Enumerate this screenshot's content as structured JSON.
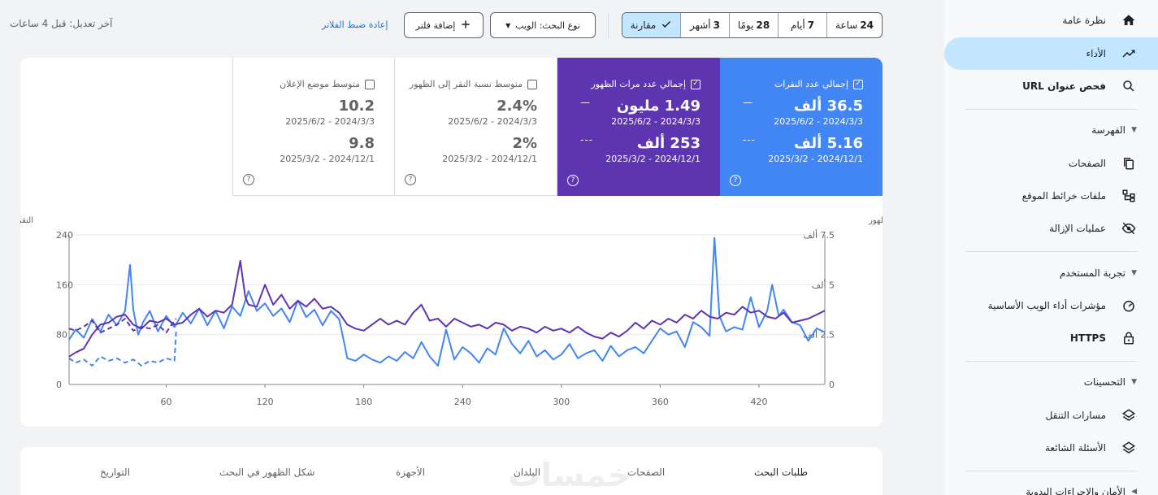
{
  "colors": {
    "accent": "#1a73e8",
    "active_bg": "#c2e7ff",
    "clicks": "#4285f4",
    "impressions": "#5e35b1"
  },
  "sidebar": {
    "items": [
      {
        "label": "نظرة عامة",
        "icon": "home-icon"
      },
      {
        "label": "الأداء",
        "icon": "trending-up-icon"
      },
      {
        "label": "فحص عنوان URL",
        "icon": "search-icon"
      }
    ],
    "indexing": {
      "title": "الفهرسة",
      "items": [
        {
          "label": "الصفحات",
          "icon": "pages-icon"
        },
        {
          "label": "ملفات خرائط الموقع",
          "icon": "sitemap-icon"
        },
        {
          "label": "عمليات الإزالة",
          "icon": "eye-off-icon"
        }
      ]
    },
    "experience": {
      "title": "تجربة المستخدم",
      "items": [
        {
          "label": "مؤشرات أداء الويب الأساسية",
          "icon": "speedometer-icon"
        },
        {
          "label": "HTTPS",
          "icon": "lock-icon"
        }
      ]
    },
    "enhancements": {
      "title": "التحسينات",
      "items": [
        {
          "label": "مسارات التنقل",
          "icon": "layers-icon"
        },
        {
          "label": "الأسئلة الشائعة",
          "icon": "layers-icon"
        }
      ]
    },
    "security": {
      "title": "الأمان والإجراءات اليدوية"
    }
  },
  "topbar": {
    "date_ranges": [
      {
        "num": "24",
        "unit": "ساعة"
      },
      {
        "num": "7",
        "unit": "أيام"
      },
      {
        "num": "28",
        "unit": "يومًا"
      },
      {
        "num": "3",
        "unit": "أشهر"
      }
    ],
    "compare_label": "مقارنة",
    "search_type_label": "نوع البحث: الويب",
    "add_filter_label": "إضافة فلتر",
    "reset_filters_label": "إعادة ضبط الفلاتر",
    "last_updated": "آخر تعديل: قبل 4 ساعات"
  },
  "metrics": {
    "clicks": {
      "label": "إجمالي عدد النقرات",
      "value1": "36.5 ألف",
      "range1": "2024/3/3 - 2025/6/2",
      "value2": "5.16 ألف",
      "range2": "2024/12/1 - 2025/3/2",
      "checked": "✓"
    },
    "impressions": {
      "label": "إجمالي عدد مرات الظهور",
      "value1": "1.49 مليون",
      "range1": "2024/3/3 - 2025/6/2",
      "value2": "253 ألف",
      "range2": "2024/12/1 - 2025/3/2",
      "checked": "✓"
    },
    "ctr": {
      "label": "متوسط نسبة النقر إلى الظهور",
      "value1": "2.4%",
      "range1": "2024/3/3 - 2025/6/2",
      "value2": "2%",
      "range2": "2024/12/1 - 2025/3/2"
    },
    "position": {
      "label": "متوسط موضع الإعلان",
      "value1": "10.2",
      "range1": "2024/3/3 - 2025/6/2",
      "value2": "9.8",
      "range2": "2024/12/1 - 2025/3/2"
    },
    "dash_solid": "—",
    "dash_dotted": "---",
    "help_glyph": "?"
  },
  "chart_data": {
    "type": "line",
    "left_axis_label": "النقرات",
    "right_axis_label": "عدد الظهور",
    "y_left": {
      "ticks": [
        "0",
        "80",
        "160",
        "240"
      ],
      "min": 0,
      "max": 240
    },
    "y_right": {
      "ticks": [
        "0",
        "2.5 ألف",
        "5 ألف",
        "7.5 ألف"
      ],
      "min": 0,
      "max": 7500
    },
    "x_ticks": [
      "60",
      "120",
      "180",
      "240",
      "300",
      "360",
      "420"
    ],
    "x_range": [
      1,
      460
    ],
    "series": [
      {
        "name": "إجمالي عدد النقرات",
        "axis": "left",
        "style": "solid",
        "color": "#4285f4",
        "points": [
          [
            1,
            72
          ],
          [
            5,
            88
          ],
          [
            10,
            75
          ],
          [
            15,
            105
          ],
          [
            20,
            85
          ],
          [
            25,
            112
          ],
          [
            30,
            95
          ],
          [
            35,
            118
          ],
          [
            38,
            192
          ],
          [
            40,
            120
          ],
          [
            43,
            80
          ],
          [
            46,
            100
          ],
          [
            50,
            118
          ],
          [
            55,
            85
          ],
          [
            60,
            110
          ],
          [
            65,
            92
          ],
          [
            70,
            115
          ],
          [
            75,
            98
          ],
          [
            80,
            122
          ],
          [
            85,
            95
          ],
          [
            90,
            118
          ],
          [
            95,
            90
          ],
          [
            100,
            125
          ],
          [
            105,
            110
          ],
          [
            110,
            150
          ],
          [
            115,
            118
          ],
          [
            120,
            130
          ],
          [
            125,
            110
          ],
          [
            130,
            122
          ],
          [
            135,
            100
          ],
          [
            140,
            135
          ],
          [
            145,
            108
          ],
          [
            150,
            120
          ],
          [
            155,
            95
          ],
          [
            160,
            118
          ],
          [
            165,
            105
          ],
          [
            168,
            68
          ],
          [
            170,
            42
          ],
          [
            175,
            38
          ],
          [
            180,
            48
          ],
          [
            185,
            40
          ],
          [
            190,
            35
          ],
          [
            195,
            45
          ],
          [
            200,
            38
          ],
          [
            205,
            52
          ],
          [
            210,
            42
          ],
          [
            215,
            68
          ],
          [
            220,
            45
          ],
          [
            225,
            30
          ],
          [
            230,
            88
          ],
          [
            235,
            40
          ],
          [
            240,
            60
          ],
          [
            245,
            50
          ],
          [
            250,
            35
          ],
          [
            255,
            58
          ],
          [
            260,
            48
          ],
          [
            265,
            90
          ],
          [
            270,
            65
          ],
          [
            275,
            50
          ],
          [
            280,
            70
          ],
          [
            285,
            45
          ],
          [
            290,
            55
          ],
          [
            295,
            40
          ],
          [
            300,
            48
          ],
          [
            305,
            65
          ],
          [
            310,
            42
          ],
          [
            315,
            50
          ],
          [
            320,
            55
          ],
          [
            325,
            38
          ],
          [
            330,
            62
          ],
          [
            335,
            45
          ],
          [
            340,
            55
          ],
          [
            345,
            60
          ],
          [
            350,
            50
          ],
          [
            355,
            70
          ],
          [
            360,
            90
          ],
          [
            365,
            80
          ],
          [
            370,
            85
          ],
          [
            375,
            60
          ],
          [
            380,
            100
          ],
          [
            385,
            92
          ],
          [
            390,
            78
          ],
          [
            393,
            235
          ],
          [
            396,
            110
          ],
          [
            400,
            85
          ],
          [
            405,
            92
          ],
          [
            410,
            88
          ],
          [
            415,
            140
          ],
          [
            420,
            92
          ],
          [
            425,
            118
          ],
          [
            428,
            160
          ],
          [
            432,
            110
          ],
          [
            435,
            120
          ],
          [
            440,
            100
          ],
          [
            445,
            95
          ],
          [
            450,
            70
          ],
          [
            455,
            90
          ],
          [
            460,
            84
          ]
        ]
      },
      {
        "name": "إجمالي عدد مرات الظهور",
        "axis": "right",
        "style": "solid",
        "color": "#5e35b1",
        "points": [
          [
            1,
            1400
          ],
          [
            5,
            1600
          ],
          [
            10,
            1800
          ],
          [
            15,
            2500
          ],
          [
            20,
            3000
          ],
          [
            25,
            3100
          ],
          [
            30,
            3400
          ],
          [
            35,
            3500
          ],
          [
            40,
            3000
          ],
          [
            45,
            2800
          ],
          [
            50,
            3200
          ],
          [
            55,
            3100
          ],
          [
            60,
            3300
          ],
          [
            65,
            3000
          ],
          [
            70,
            3100
          ],
          [
            75,
            3500
          ],
          [
            80,
            3800
          ],
          [
            85,
            3400
          ],
          [
            90,
            3700
          ],
          [
            95,
            3600
          ],
          [
            100,
            4000
          ],
          [
            105,
            6200
          ],
          [
            108,
            4400
          ],
          [
            110,
            4000
          ],
          [
            115,
            3900
          ],
          [
            120,
            5000
          ],
          [
            125,
            4000
          ],
          [
            130,
            4500
          ],
          [
            135,
            3800
          ],
          [
            140,
            4200
          ],
          [
            145,
            3900
          ],
          [
            150,
            4300
          ],
          [
            155,
            3800
          ],
          [
            160,
            3900
          ],
          [
            165,
            3600
          ],
          [
            170,
            3000
          ],
          [
            175,
            2800
          ],
          [
            180,
            2700
          ],
          [
            185,
            3000
          ],
          [
            190,
            3300
          ],
          [
            195,
            3000
          ],
          [
            200,
            3200
          ],
          [
            205,
            3000
          ],
          [
            210,
            3600
          ],
          [
            215,
            4000
          ],
          [
            220,
            3200
          ],
          [
            225,
            3300
          ],
          [
            230,
            2900
          ],
          [
            235,
            3300
          ],
          [
            240,
            3100
          ],
          [
            245,
            2900
          ],
          [
            250,
            3000
          ],
          [
            255,
            2800
          ],
          [
            260,
            3100
          ],
          [
            265,
            3000
          ],
          [
            270,
            2700
          ],
          [
            275,
            2900
          ],
          [
            280,
            2800
          ],
          [
            285,
            2600
          ],
          [
            290,
            2900
          ],
          [
            295,
            2700
          ],
          [
            300,
            2800
          ],
          [
            305,
            2600
          ],
          [
            310,
            2900
          ],
          [
            315,
            2600
          ],
          [
            320,
            2400
          ],
          [
            325,
            2300
          ],
          [
            330,
            2600
          ],
          [
            335,
            2400
          ],
          [
            340,
            2700
          ],
          [
            345,
            3100
          ],
          [
            350,
            2800
          ],
          [
            355,
            3200
          ],
          [
            360,
            3000
          ],
          [
            365,
            3300
          ],
          [
            370,
            3100
          ],
          [
            375,
            3500
          ],
          [
            380,
            3300
          ],
          [
            385,
            3700
          ],
          [
            390,
            3400
          ],
          [
            395,
            3300
          ],
          [
            400,
            3600
          ],
          [
            405,
            3500
          ],
          [
            410,
            3900
          ],
          [
            415,
            3600
          ],
          [
            420,
            3700
          ],
          [
            425,
            3400
          ],
          [
            430,
            3300
          ],
          [
            435,
            3600
          ],
          [
            440,
            3100
          ],
          [
            445,
            3200
          ],
          [
            450,
            3300
          ],
          [
            455,
            3500
          ],
          [
            460,
            3700
          ]
        ]
      },
      {
        "name": "إجمالي عدد النقرات (المقارنة)",
        "axis": "left",
        "style": "dashed",
        "color": "#4285f4",
        "points": [
          [
            1,
            42
          ],
          [
            5,
            35
          ],
          [
            10,
            40
          ],
          [
            15,
            30
          ],
          [
            20,
            45
          ],
          [
            25,
            38
          ],
          [
            30,
            42
          ],
          [
            35,
            35
          ],
          [
            40,
            40
          ],
          [
            45,
            30
          ],
          [
            50,
            38
          ],
          [
            55,
            35
          ],
          [
            60,
            42
          ],
          [
            65,
            38
          ],
          [
            66,
            85
          ]
        ]
      },
      {
        "name": "إجمالي عدد مرات الظهور (المقارنة)",
        "axis": "right",
        "style": "dashed",
        "color": "#5e35b1",
        "points": [
          [
            1,
            2800
          ],
          [
            5,
            2700
          ],
          [
            10,
            2900
          ],
          [
            15,
            3200
          ],
          [
            20,
            2600
          ],
          [
            25,
            2800
          ],
          [
            30,
            3000
          ],
          [
            35,
            3300
          ],
          [
            40,
            2700
          ],
          [
            45,
            2900
          ],
          [
            50,
            2800
          ],
          [
            55,
            3000
          ],
          [
            60,
            2600
          ],
          [
            65,
            3200
          ],
          [
            66,
            3300
          ]
        ]
      }
    ]
  },
  "tabs": {
    "items": [
      "طلبات البحث",
      "الصفحات",
      "البلدان",
      "الأجهزة",
      "شكل الظهور في البحث",
      "التواريخ"
    ]
  },
  "watermark": "خمسات"
}
